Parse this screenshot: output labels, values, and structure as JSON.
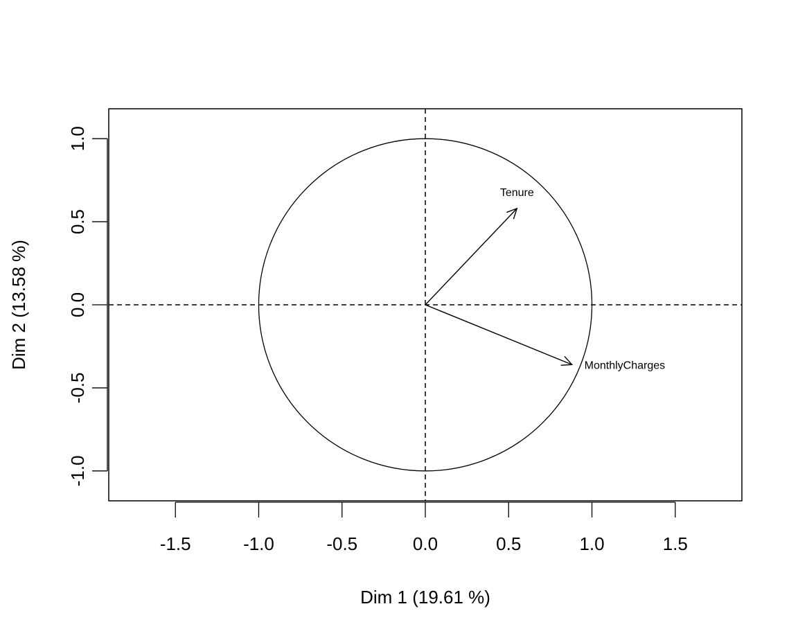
{
  "chart_data": {
    "type": "scatter",
    "subtype": "correlation-circle",
    "title": "",
    "xlabel": "Dim 1 (19.61 %)",
    "ylabel": "Dim 2 (13.58 %)",
    "xlim": [
      -1.9,
      1.9
    ],
    "ylim": [
      -1.18,
      1.18
    ],
    "x_ticks": [
      -1.5,
      -1.0,
      -0.5,
      0.0,
      0.5,
      1.0,
      1.5
    ],
    "x_tick_labels": [
      "-1.5",
      "-1.0",
      "-0.5",
      "0.0",
      "0.5",
      "1.0",
      "1.5"
    ],
    "y_ticks": [
      -1.0,
      -0.5,
      0.0,
      0.5,
      1.0
    ],
    "y_tick_labels": [
      "-1.0",
      "-0.5",
      "0.0",
      "0.5",
      "1.0"
    ],
    "unit_circle_radius": 1.0,
    "grid": false,
    "reference_lines": [
      0,
      0
    ],
    "vectors": [
      {
        "name": "Tenure",
        "x": 0.55,
        "y": 0.58,
        "label_anchor": "above"
      },
      {
        "name": "MonthlyCharges",
        "x": 0.88,
        "y": -0.36,
        "label_anchor": "right"
      }
    ]
  }
}
